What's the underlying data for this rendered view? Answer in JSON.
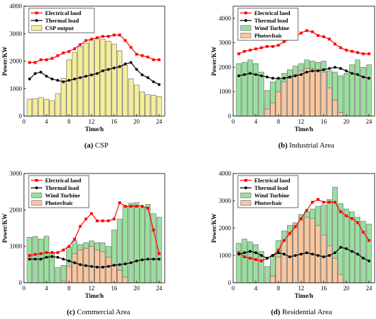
{
  "chart_data": [
    {
      "panel": "a",
      "caption_letter": "(a)",
      "caption_text": "CSP",
      "type": "bar+line",
      "xlabel": "Time/h",
      "ylabel": "Power/KW",
      "xlim": [
        0,
        25
      ],
      "ylim": [
        0,
        4000
      ],
      "xticks": [
        "0",
        "4",
        "8",
        "12",
        "16",
        "20",
        "24"
      ],
      "yticks": [
        "0",
        "1000",
        "2000",
        "3000",
        "4000"
      ],
      "legend_position": "top-left",
      "x": [
        1,
        2,
        3,
        4,
        5,
        6,
        7,
        8,
        9,
        10,
        11,
        12,
        13,
        14,
        15,
        16,
        17,
        18,
        19,
        20,
        21,
        22,
        23,
        24
      ],
      "bars": [
        {
          "name": "CSP output",
          "color": "#f5ee9a",
          "values": [
            620,
            640,
            680,
            620,
            560,
            820,
            1380,
            2050,
            2320,
            2520,
            2650,
            2760,
            2820,
            2790,
            2730,
            2620,
            2380,
            1850,
            1360,
            1130,
            880,
            780,
            760,
            710
          ]
        }
      ],
      "lines": [
        {
          "name": "Electrical laod",
          "color": "#ff0000",
          "marker": "square",
          "values": [
            1950,
            1950,
            2050,
            2050,
            2100,
            2200,
            2300,
            2350,
            2450,
            2600,
            2750,
            2800,
            2850,
            2900,
            2900,
            2950,
            2950,
            2750,
            2500,
            2250,
            2200,
            2150,
            2050,
            2050
          ]
        },
        {
          "name": "Thermal load",
          "color": "#000000",
          "marker": "circle",
          "values": [
            1350,
            1550,
            1600,
            1450,
            1350,
            1300,
            1250,
            1300,
            1350,
            1400,
            1450,
            1500,
            1550,
            1650,
            1700,
            1750,
            1800,
            1900,
            1950,
            1700,
            1500,
            1400,
            1250,
            1150
          ]
        }
      ],
      "legend_order": [
        {
          "kind": "line",
          "ref": 0
        },
        {
          "kind": "line",
          "ref": 1
        },
        {
          "kind": "bar",
          "ref": 0
        }
      ]
    },
    {
      "panel": "b",
      "caption_letter": "(b)",
      "caption_text": "Industrial Area",
      "type": "bar+line",
      "xlabel": "Time/h",
      "ylabel": "Power/KW",
      "xlim": [
        0,
        25
      ],
      "ylim": [
        0,
        4500
      ],
      "xticks": [
        "0",
        "4",
        "8",
        "12",
        "16",
        "20",
        "24"
      ],
      "yticks": [
        "0",
        "1000",
        "2000",
        "3000",
        "4000"
      ],
      "legend_position": "top-left",
      "x": [
        1,
        2,
        3,
        4,
        5,
        6,
        7,
        8,
        9,
        10,
        11,
        12,
        13,
        14,
        15,
        16,
        17,
        18,
        19,
        20,
        21,
        22,
        23,
        24
      ],
      "bars": [
        {
          "name": "Wind Turbine",
          "color": "#9bdf9f",
          "values": [
            2150,
            2200,
            2300,
            2150,
            1800,
            1050,
            1400,
            1500,
            1750,
            1900,
            2050,
            2150,
            2300,
            2250,
            2200,
            2250,
            1850,
            1800,
            1650,
            1750,
            2100,
            2300,
            2000,
            2100
          ]
        },
        {
          "name": "Photovltaic",
          "color": "#f9c79f",
          "values": [
            0,
            0,
            0,
            0,
            0,
            300,
            550,
            1000,
            1400,
            1550,
            1700,
            1850,
            1950,
            1950,
            1900,
            1800,
            1150,
            650,
            150,
            0,
            0,
            0,
            0,
            0
          ]
        }
      ],
      "lines": [
        {
          "name": "Electrical laod",
          "color": "#ff0000",
          "marker": "square",
          "values": [
            2550,
            2650,
            2700,
            2750,
            2800,
            2850,
            2850,
            2900,
            3050,
            3150,
            3250,
            3400,
            3500,
            3450,
            3300,
            3250,
            3150,
            2950,
            2800,
            2700,
            2650,
            2600,
            2550,
            2550
          ]
        },
        {
          "name": "Thermal load",
          "color": "#000000",
          "marker": "circle",
          "values": [
            1650,
            1700,
            1750,
            1700,
            1650,
            1600,
            1550,
            1550,
            1550,
            1600,
            1650,
            1700,
            1800,
            1850,
            1850,
            1900,
            1950,
            2000,
            1950,
            1850,
            1750,
            1700,
            1600,
            1550
          ]
        }
      ],
      "legend_order": [
        {
          "kind": "line",
          "ref": 0
        },
        {
          "kind": "line",
          "ref": 1
        },
        {
          "kind": "bar",
          "ref": 0
        },
        {
          "kind": "bar",
          "ref": 1
        }
      ]
    },
    {
      "panel": "c",
      "caption_letter": "(c)",
      "caption_text": "Commercial Area",
      "type": "bar+line",
      "xlabel": "Time/h",
      "ylabel": "Power/KW",
      "xlim": [
        0,
        25
      ],
      "ylim": [
        0,
        3000
      ],
      "xticks": [
        "0",
        "4",
        "8",
        "12",
        "16",
        "20",
        "24"
      ],
      "yticks": [
        "0",
        "1000",
        "2000",
        "3000"
      ],
      "legend_position": "top-left",
      "x": [
        1,
        2,
        3,
        4,
        5,
        6,
        7,
        8,
        9,
        10,
        11,
        12,
        13,
        14,
        15,
        16,
        17,
        18,
        19,
        20,
        21,
        22,
        23,
        24
      ],
      "bars": [
        {
          "name": "Wind Turbine",
          "color": "#9bdf9f",
          "values": [
            1250,
            1270,
            1200,
            1280,
            820,
            420,
            480,
            980,
            1150,
            1050,
            1100,
            1150,
            1100,
            1100,
            1000,
            1450,
            1750,
            2100,
            2180,
            2200,
            2050,
            2150,
            1900,
            1800
          ]
        },
        {
          "name": "Photovltaic",
          "color": "#f9c79f",
          "values": [
            0,
            0,
            0,
            0,
            0,
            0,
            50,
            450,
            800,
            900,
            950,
            1000,
            900,
            850,
            700,
            500,
            350,
            150,
            0,
            0,
            0,
            0,
            0,
            0
          ]
        }
      ],
      "lines": [
        {
          "name": "Electrical laod",
          "color": "#ff0000",
          "marker": "square",
          "values": [
            750,
            780,
            800,
            830,
            830,
            830,
            900,
            1000,
            1200,
            1550,
            1750,
            1900,
            1700,
            1700,
            1700,
            1750,
            2200,
            2100,
            2100,
            2100,
            2100,
            2050,
            1450,
            800
          ]
        },
        {
          "name": "Thermal load",
          "color": "#000000",
          "marker": "circle",
          "values": [
            650,
            650,
            650,
            700,
            720,
            700,
            650,
            600,
            550,
            500,
            470,
            450,
            430,
            430,
            450,
            480,
            500,
            520,
            550,
            600,
            630,
            650,
            650,
            650
          ]
        }
      ],
      "legend_order": [
        {
          "kind": "line",
          "ref": 0
        },
        {
          "kind": "line",
          "ref": 1
        },
        {
          "kind": "bar",
          "ref": 0
        },
        {
          "kind": "bar",
          "ref": 1
        }
      ]
    },
    {
      "panel": "d",
      "caption_letter": "(d)",
      "caption_text": "Residential Area",
      "type": "bar+line",
      "xlabel": "Time/h",
      "ylabel": "Power/KW",
      "xlim": [
        0,
        25
      ],
      "ylim": [
        0,
        4000
      ],
      "xticks": [
        "0",
        "4",
        "8",
        "12",
        "16",
        "20",
        "24"
      ],
      "yticks": [
        "0",
        "1000",
        "2000",
        "3000",
        "4000"
      ],
      "legend_position": "top-left",
      "x": [
        1,
        2,
        3,
        4,
        5,
        6,
        7,
        8,
        9,
        10,
        11,
        12,
        13,
        14,
        15,
        16,
        17,
        18,
        19,
        20,
        21,
        22,
        23,
        24
      ],
      "bars": [
        {
          "name": "Wind Turbine",
          "color": "#9bdf9f",
          "values": [
            1450,
            1600,
            1500,
            1400,
            1150,
            600,
            1000,
            1550,
            1900,
            2100,
            2200,
            2500,
            2600,
            2700,
            2800,
            2850,
            3050,
            3500,
            2900,
            2700,
            2600,
            2400,
            2250,
            2150
          ]
        },
        {
          "name": "Photovltaic",
          "color": "#f9c79f",
          "values": [
            0,
            0,
            0,
            0,
            0,
            0,
            250,
            950,
            1550,
            1850,
            2100,
            2300,
            2400,
            2350,
            2100,
            1750,
            1350,
            900,
            300,
            0,
            0,
            0,
            0,
            0
          ]
        }
      ],
      "lines": [
        {
          "name": "Electrical laod",
          "color": "#ff0000",
          "marker": "square",
          "values": [
            1100,
            950,
            900,
            850,
            800,
            900,
            1000,
            1200,
            1550,
            1800,
            2050,
            2350,
            2650,
            2950,
            3050,
            2950,
            2950,
            2950,
            2600,
            2450,
            2350,
            2200,
            1850,
            1550
          ]
        },
        {
          "name": "Thermal load",
          "color": "#000000",
          "marker": "circle",
          "values": [
            1050,
            1100,
            1150,
            1100,
            1000,
            900,
            1000,
            1100,
            1050,
            950,
            1000,
            1050,
            1100,
            1050,
            1000,
            950,
            1000,
            1100,
            1300,
            1250,
            1150,
            1050,
            900,
            800
          ]
        }
      ],
      "legend_order": [
        {
          "kind": "line",
          "ref": 0
        },
        {
          "kind": "line",
          "ref": 1
        },
        {
          "kind": "bar",
          "ref": 0
        },
        {
          "kind": "bar",
          "ref": 1
        }
      ]
    }
  ]
}
